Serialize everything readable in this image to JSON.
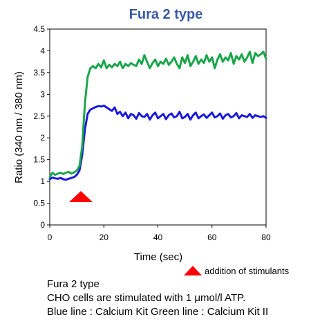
{
  "chart_data": {
    "type": "line",
    "title": "Fura 2 type",
    "xlabel": "Time (sec)",
    "ylabel": "Ratio (340 nm / 380 nm)",
    "xlim": [
      0,
      80
    ],
    "ylim": [
      0,
      4.5
    ],
    "xticks": [
      0,
      20,
      40,
      60,
      80
    ],
    "yticks": [
      0,
      0.5,
      1,
      1.5,
      2,
      2.5,
      3,
      3.5,
      4,
      4.5
    ],
    "ytick_labels": [
      "0",
      "0.5",
      "1",
      "1.5",
      "2",
      "2.5",
      "3",
      "3.5",
      "4",
      "4.5"
    ],
    "grid": false,
    "marker": {
      "x": 11.5,
      "label": "addition of stimulants",
      "color": "#ff0000"
    },
    "series": [
      {
        "name": "Blue line",
        "color": "#1a1adc",
        "x": [
          0,
          1,
          2,
          3,
          4,
          5,
          6,
          7,
          8,
          9,
          10,
          11,
          12,
          13,
          14,
          15,
          16,
          17,
          18,
          19,
          20,
          21,
          22,
          23,
          24,
          25,
          26,
          27,
          28,
          29,
          30,
          31,
          32,
          33,
          34,
          35,
          36,
          37,
          38,
          39,
          40,
          41,
          42,
          43,
          44,
          45,
          46,
          47,
          48,
          49,
          50,
          51,
          52,
          53,
          54,
          55,
          56,
          57,
          58,
          59,
          60,
          61,
          62,
          63,
          64,
          65,
          66,
          67,
          68,
          69,
          70,
          71,
          72,
          73,
          74,
          75,
          76,
          77,
          78,
          79,
          80
        ],
        "values": [
          1.05,
          1.09,
          1.07,
          1.06,
          1.08,
          1.05,
          1.04,
          1.06,
          1.08,
          1.1,
          1.15,
          1.25,
          1.6,
          2.2,
          2.55,
          2.65,
          2.68,
          2.71,
          2.73,
          2.72,
          2.74,
          2.7,
          2.66,
          2.62,
          2.7,
          2.55,
          2.6,
          2.5,
          2.58,
          2.45,
          2.55,
          2.52,
          2.44,
          2.57,
          2.5,
          2.48,
          2.55,
          2.42,
          2.52,
          2.58,
          2.45,
          2.5,
          2.55,
          2.43,
          2.52,
          2.56,
          2.47,
          2.5,
          2.6,
          2.45,
          2.48,
          2.55,
          2.42,
          2.52,
          2.58,
          2.45,
          2.5,
          2.54,
          2.46,
          2.52,
          2.58,
          2.47,
          2.5,
          2.56,
          2.44,
          2.52,
          2.55,
          2.47,
          2.5,
          2.57,
          2.45,
          2.52,
          2.5,
          2.48,
          2.55,
          2.46,
          2.52,
          2.5,
          2.48,
          2.5,
          2.46
        ]
      },
      {
        "name": "Green line",
        "color": "#1aa64a",
        "x": [
          0,
          1,
          2,
          3,
          4,
          5,
          6,
          7,
          8,
          9,
          10,
          11,
          12,
          13,
          14,
          15,
          16,
          17,
          18,
          19,
          20,
          21,
          22,
          23,
          24,
          25,
          26,
          27,
          28,
          29,
          30,
          31,
          32,
          33,
          34,
          35,
          36,
          37,
          38,
          39,
          40,
          41,
          42,
          43,
          44,
          45,
          46,
          47,
          48,
          49,
          50,
          51,
          52,
          53,
          54,
          55,
          56,
          57,
          58,
          59,
          60,
          61,
          62,
          63,
          64,
          65,
          66,
          67,
          68,
          69,
          70,
          71,
          72,
          73,
          74,
          75,
          76,
          77,
          78,
          79,
          80
        ],
        "values": [
          1.1,
          1.2,
          1.15,
          1.18,
          1.2,
          1.17,
          1.2,
          1.22,
          1.18,
          1.21,
          1.25,
          1.35,
          1.8,
          2.8,
          3.4,
          3.6,
          3.65,
          3.6,
          3.7,
          3.62,
          3.78,
          3.6,
          3.68,
          3.62,
          3.7,
          3.65,
          3.75,
          3.6,
          3.7,
          3.65,
          3.72,
          3.68,
          3.65,
          3.8,
          3.7,
          3.9,
          3.75,
          3.6,
          3.72,
          3.8,
          3.65,
          3.75,
          3.7,
          3.82,
          3.68,
          3.75,
          3.85,
          3.7,
          3.6,
          3.85,
          3.72,
          3.9,
          3.65,
          3.75,
          3.88,
          3.7,
          3.8,
          3.72,
          3.9,
          3.75,
          3.85,
          3.6,
          3.8,
          3.92,
          3.75,
          3.85,
          3.78,
          3.95,
          3.7,
          3.88,
          3.8,
          3.92,
          3.75,
          3.85,
          3.98,
          3.72,
          3.95,
          3.88,
          3.92,
          3.98,
          3.82
        ]
      }
    ]
  },
  "captions": [
    "Fura 2 type",
    "CHO cells are stimulated with 1 μmol/l ATP.",
    "Blue line : Calcium Kit  Green line : Calcium Kit II"
  ]
}
